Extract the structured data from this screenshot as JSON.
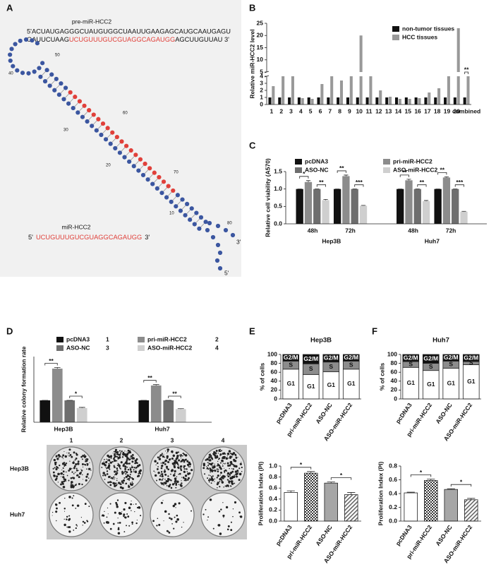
{
  "panel_a": {
    "panel": "A",
    "precursor_title": "pre-miR-HCC2",
    "precursor_line1": "5'ACUAUGAGGGCUAUGUGGCUAAUUGAAGAGCAUGCAAUGAGU",
    "precursor_line2_start": "GAUUCUAAG",
    "mature_sequence": "UCUGUUUGUCGUAGGCAGAUGG",
    "precursor_line2_end": "AGCUUGUUAU 3'",
    "mature_title": "miR-HCC2",
    "strand_ends": [
      "5'",
      "3'"
    ],
    "position_labels": [
      "10",
      "20",
      "30",
      "40",
      "50",
      "60",
      "70",
      "80"
    ]
  },
  "chart_data": [
    {
      "type": "bar",
      "panel": "B",
      "ylabel": "Relative miR-HCC2 level",
      "categories": [
        "1",
        "2",
        "3",
        "4",
        "5",
        "6",
        "7",
        "8",
        "9",
        "10",
        "11",
        "12",
        "13",
        "14",
        "15",
        "16",
        "17",
        "18",
        "19",
        "20",
        "combined"
      ],
      "series": [
        {
          "name": "non-tumor tissues",
          "color": "#111111",
          "values": [
            1,
            1,
            1,
            1,
            1,
            1,
            1,
            1,
            1,
            1,
            1,
            1,
            1,
            1,
            1,
            1,
            1,
            1,
            1,
            1,
            1
          ]
        },
        {
          "name": "HCC tissues",
          "color": "#999999",
          "values": [
            2.6,
            4,
            4,
            0.9,
            0.8,
            2.9,
            4,
            3.4,
            4,
            20,
            4,
            2,
            1.1,
            0.8,
            0.8,
            0.9,
            1.7,
            2.3,
            4,
            23,
            4
          ]
        }
      ],
      "ylim": [
        0,
        25
      ],
      "yticks": [
        0,
        1,
        2,
        3,
        4,
        5,
        10,
        15,
        20,
        25
      ],
      "y_break": [
        4,
        5
      ],
      "grid": false,
      "significance": [
        "**"
      ]
    },
    {
      "type": "bar",
      "panel": "C",
      "ylabel": "Relative cell viability (A570)",
      "categories": [
        "48h",
        "72h",
        "48h",
        "72h"
      ],
      "groups": [
        "Hep3B",
        "Huh7"
      ],
      "series": [
        {
          "name": "pcDNA3",
          "color": "#111111",
          "values": [
            1,
            1,
            1,
            1
          ],
          "errors": [
            0,
            0,
            0,
            0
          ]
        },
        {
          "name": "pri-miR-HCC2",
          "color": "#8c8c8c",
          "values": [
            1.2,
            1.37,
            1.25,
            1.33
          ],
          "errors": [
            0.04,
            0.03,
            0.03,
            0.02
          ]
        },
        {
          "name": "ASO-NC",
          "color": "#6e6e6e",
          "values": [
            1,
            1,
            1,
            1
          ],
          "errors": [
            0,
            0,
            0,
            0
          ]
        },
        {
          "name": "ASO-miR-HCC2",
          "color": "#cfcfcf",
          "values": [
            0.68,
            0.52,
            0.65,
            0.35
          ],
          "errors": [
            0.02,
            0.01,
            0.02,
            0.01
          ]
        }
      ],
      "ylim": [
        0,
        1.5
      ],
      "yticks": [
        {
          "value": 0,
          "label": "0.0"
        },
        0.5,
        {
          "value": 1,
          "label": "1.0"
        },
        1.5
      ],
      "grid": false,
      "significance": [
        "*",
        "**",
        "**",
        "***",
        "**",
        "**",
        "**",
        "***"
      ]
    },
    {
      "type": "bar",
      "panel": "D",
      "ylabel": "Relative colony formation rate",
      "categories": [
        "Hep3B",
        "Huh7"
      ],
      "series": [
        {
          "name": "pcDNA3",
          "color": "#111111",
          "values": [
            1,
            1
          ],
          "errors": [
            0,
            0
          ]
        },
        {
          "name": "pri-miR-HCC2",
          "color": "#8c8c8c",
          "values": [
            2.45,
            1.68
          ],
          "errors": [
            0.05,
            0.04
          ]
        },
        {
          "name": "ASO-NC",
          "color": "#6e6e6e",
          "values": [
            1,
            1
          ],
          "errors": [
            0,
            0
          ]
        },
        {
          "name": "ASO-miR-HCC2",
          "color": "#cfcfcf",
          "values": [
            0.65,
            0.6
          ],
          "errors": [
            0.03,
            0.02
          ]
        }
      ],
      "legend_numbers": [
        "1",
        "2",
        "3",
        "4"
      ],
      "plate_rows": [
        "Hep3B",
        "Huh7"
      ],
      "ylim": [
        0,
        3
      ],
      "grid": false,
      "significance": [
        "**",
        "*",
        "**",
        "**"
      ]
    },
    {
      "type": "stacked_bar",
      "panel": "E",
      "title": "Hep3B",
      "ylabel": "% of cells",
      "categories": [
        "pcDNA3",
        "pri-miR-HCC2",
        "ASO-NC",
        "ASO-miR-HCC2"
      ],
      "series": [
        {
          "name": "G1",
          "color": "#ffffff",
          "values": [
            67,
            55,
            61,
            67
          ]
        },
        {
          "name": "S",
          "color": "#8c8c8c",
          "values": [
            18,
            24,
            22,
            18
          ]
        },
        {
          "name": "G2/M",
          "color": "#111111",
          "values": [
            15,
            21,
            17,
            15
          ]
        }
      ],
      "ylim": [
        0,
        100
      ],
      "yticks": [
        0,
        20,
        40,
        60,
        80,
        100
      ],
      "grid": false
    },
    {
      "type": "bar",
      "ylabel": "Proliferation Index (PI)",
      "categories": [
        "pcDNA3",
        "pri-miR-HCC2",
        "ASO-NC",
        "ASO-miR-HCC2"
      ],
      "values": [
        0.52,
        0.87,
        0.69,
        0.48
      ],
      "errors": [
        0.03,
        0.03,
        0.02,
        0.04
      ],
      "fills": [
        "#ffffff",
        "checker",
        "#a6a6a6",
        "hatch"
      ],
      "ylim": [
        0,
        1
      ],
      "yticks": [
        {
          "value": 0,
          "label": "0.0"
        },
        0.2,
        0.4,
        0.6,
        0.8,
        {
          "value": 1,
          "label": "1.0"
        }
      ],
      "grid": false,
      "significance": [
        "*",
        "*"
      ]
    },
    {
      "type": "stacked_bar",
      "panel": "F",
      "title": "Huh7",
      "ylabel": "% of cells",
      "categories": [
        "pcDNA3",
        "pri-miR-HCC2",
        "ASO-NC",
        "ASO-miR-HCC2"
      ],
      "series": [
        {
          "name": "G1",
          "color": "#ffffff",
          "values": [
            71,
            64,
            69,
            77
          ]
        },
        {
          "name": "S",
          "color": "#8c8c8c",
          "values": [
            13,
            16,
            16,
            7
          ]
        },
        {
          "name": "G2/M",
          "color": "#111111",
          "values": [
            16,
            20,
            15,
            16
          ]
        }
      ],
      "ylim": [
        0,
        100
      ],
      "yticks": [
        0,
        20,
        40,
        60,
        80,
        100
      ],
      "grid": false
    },
    {
      "type": "bar",
      "ylabel": "Proliferation Index (PI)",
      "categories": [
        "pcDNA3",
        "pri-miR-HCC2",
        "ASO-NC",
        "ASO-miR-HCC2"
      ],
      "values": [
        0.41,
        0.59,
        0.46,
        0.31
      ],
      "errors": [
        0.01,
        0.02,
        0.01,
        0.02
      ],
      "fills": [
        "#ffffff",
        "checker",
        "#a6a6a6",
        "hatch"
      ],
      "ylim": [
        0,
        0.8
      ],
      "yticks": [
        {
          "value": 0,
          "label": "0.0"
        },
        0.2,
        0.4,
        0.6,
        0.8
      ],
      "grid": false,
      "significance": [
        "*",
        "*"
      ]
    }
  ]
}
